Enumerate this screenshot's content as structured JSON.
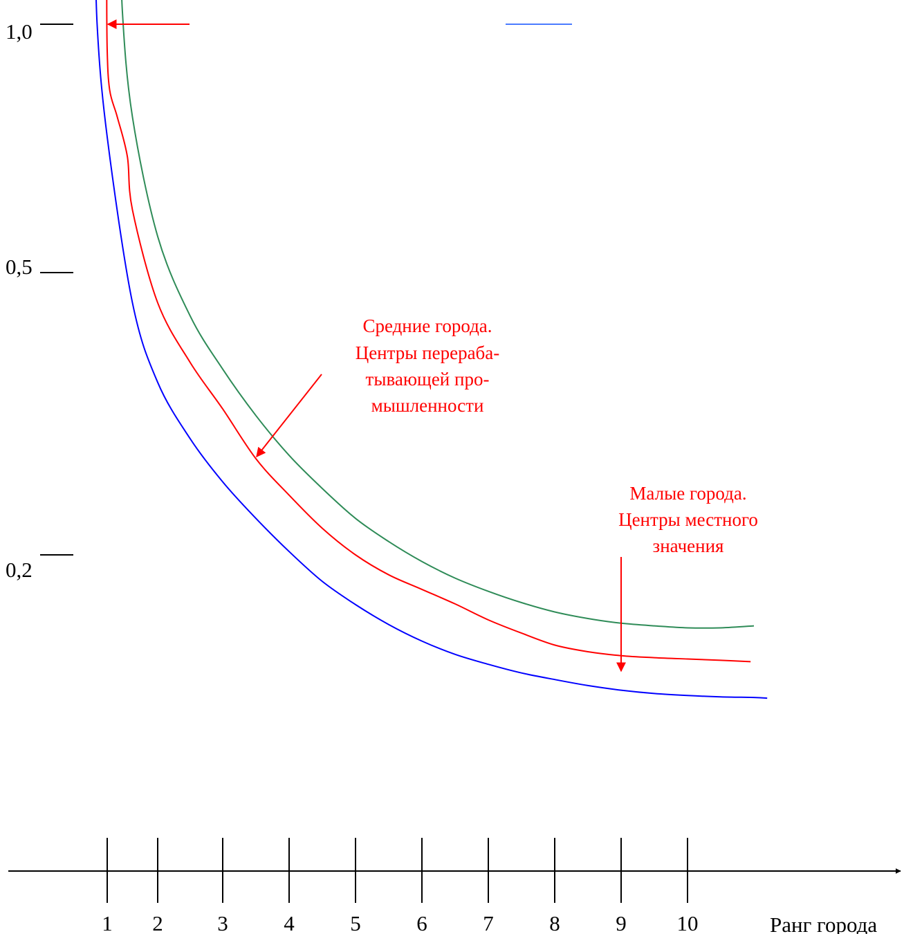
{
  "chart_data": {
    "type": "line",
    "title": "",
    "xlabel": "Ранг города",
    "ylabel": "",
    "categories": [
      "1",
      "2",
      "3",
      "4",
      "5",
      "6",
      "7",
      "8",
      "9",
      "10"
    ],
    "y_ticks": [
      "1,0",
      "0,5",
      "0,2"
    ],
    "grid": false,
    "series": [
      {
        "color": "#0000ff",
        "points": [
          [
            0.75,
            1.18
          ],
          [
            0.8,
            1.0
          ],
          [
            1.0,
            0.83
          ],
          [
            1.5,
            0.58
          ],
          [
            2,
            0.46
          ],
          [
            2.5,
            0.375
          ],
          [
            3,
            0.31
          ],
          [
            3.5,
            0.255
          ],
          [
            4,
            0.205
          ],
          [
            4.5,
            0.16
          ],
          [
            5,
            0.125
          ],
          [
            5.5,
            0.095
          ],
          [
            6,
            0.07
          ],
          [
            6.5,
            0.05
          ],
          [
            7,
            0.035
          ],
          [
            7.5,
            0.022
          ],
          [
            8,
            0.012
          ],
          [
            8.5,
            0.003
          ],
          [
            9,
            -0.004
          ],
          [
            9.5,
            -0.009
          ],
          [
            10,
            -0.012
          ],
          [
            10.5,
            -0.014
          ],
          [
            11,
            -0.015
          ],
          [
            11.2,
            -0.016
          ]
        ]
      },
      {
        "color": "#ff0000",
        "points": [
          [
            1.0,
            1.18
          ],
          [
            0.99,
            1.06
          ],
          [
            1.0,
            0.96
          ],
          [
            1.05,
            0.9
          ],
          [
            1.2,
            0.86
          ],
          [
            1.4,
            0.8
          ],
          [
            1.5,
            0.72
          ],
          [
            2,
            0.58
          ],
          [
            2.5,
            0.49
          ],
          [
            3,
            0.42
          ],
          [
            3.5,
            0.345
          ],
          [
            4,
            0.29
          ],
          [
            4.5,
            0.24
          ],
          [
            5,
            0.2
          ],
          [
            5.5,
            0.17
          ],
          [
            6,
            0.148
          ],
          [
            6.5,
            0.126
          ],
          [
            7,
            0.102
          ],
          [
            7.5,
            0.082
          ],
          [
            8,
            0.064
          ],
          [
            8.5,
            0.054
          ],
          [
            9,
            0.048
          ],
          [
            9.5,
            0.045
          ],
          [
            10,
            0.043
          ],
          [
            10.5,
            0.041
          ],
          [
            10.95,
            0.039
          ]
        ]
      },
      {
        "color": "#2e8b57",
        "points": [
          [
            1.25,
            1.18
          ],
          [
            1.3,
            1.02
          ],
          [
            1.5,
            0.86
          ],
          [
            2,
            0.68
          ],
          [
            2.5,
            0.56
          ],
          [
            3,
            0.48
          ],
          [
            3.5,
            0.41
          ],
          [
            4,
            0.35
          ],
          [
            4.5,
            0.3
          ],
          [
            5,
            0.255
          ],
          [
            5.5,
            0.22
          ],
          [
            6,
            0.19
          ],
          [
            6.5,
            0.165
          ],
          [
            7,
            0.145
          ],
          [
            7.5,
            0.128
          ],
          [
            8,
            0.114
          ],
          [
            8.5,
            0.104
          ],
          [
            9,
            0.097
          ],
          [
            9.5,
            0.093
          ],
          [
            10,
            0.09
          ],
          [
            10.5,
            0.09
          ],
          [
            11,
            0.093
          ]
        ]
      }
    ],
    "annotations": [
      {
        "text_lines": [
          "Средние города.",
          "Центры перераба-",
          "тывающей про-",
          "мышленности"
        ],
        "color": "#ff0000"
      },
      {
        "text_lines": [
          "Малые города.",
          "Центры местного",
          "значения"
        ],
        "color": "#ff0000"
      }
    ]
  }
}
